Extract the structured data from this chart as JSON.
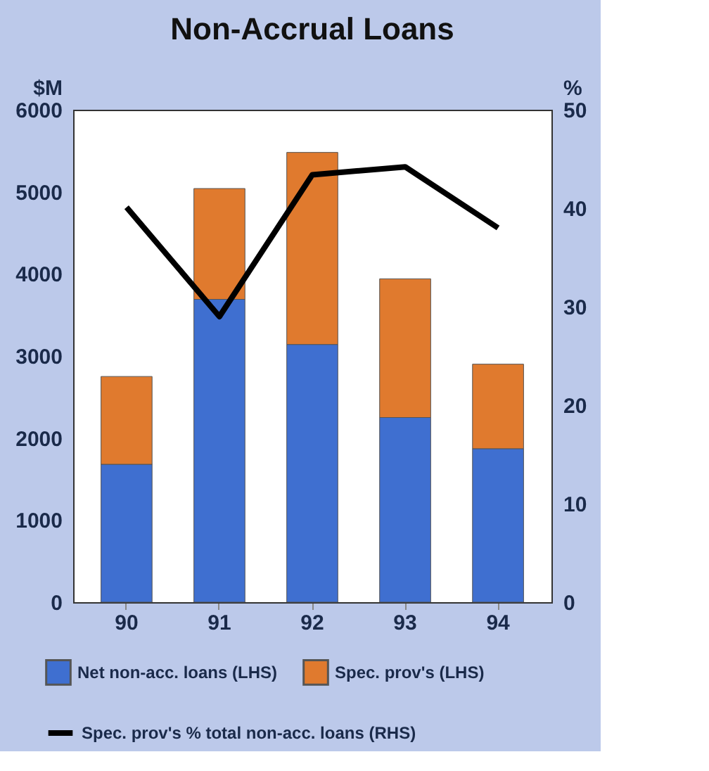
{
  "chart_data": {
    "type": "bar",
    "title": "Non-Accrual Loans",
    "ylabel": "$M",
    "y2label": "%",
    "categories": [
      "90",
      "91",
      "92",
      "93",
      "94"
    ],
    "stacked": true,
    "series": [
      {
        "name": "Net non-acc. loans (LHS)",
        "color": "#3f6fd0",
        "values": [
          1680,
          3690,
          3140,
          2250,
          1870
        ]
      },
      {
        "name": "Spec. prov's (LHS)",
        "color": "#e07a2e",
        "values": [
          1070,
          1350,
          2340,
          1690,
          1030
        ]
      },
      {
        "name": "Spec. prov's % total non-acc. loans (RHS)",
        "color": "#000000",
        "type": "line",
        "axis": "y2",
        "values": [
          40.1,
          29.0,
          43.4,
          44.2,
          38.0
        ]
      }
    ],
    "ylim": [
      0,
      6000
    ],
    "yticks": [
      0,
      1000,
      2000,
      3000,
      4000,
      5000,
      6000
    ],
    "y2lim": [
      0,
      50
    ],
    "y2ticks": [
      0,
      10,
      20,
      30,
      40,
      50
    ],
    "grid": false,
    "legend": "bottom",
    "marker": "none",
    "line_style": "solid"
  }
}
